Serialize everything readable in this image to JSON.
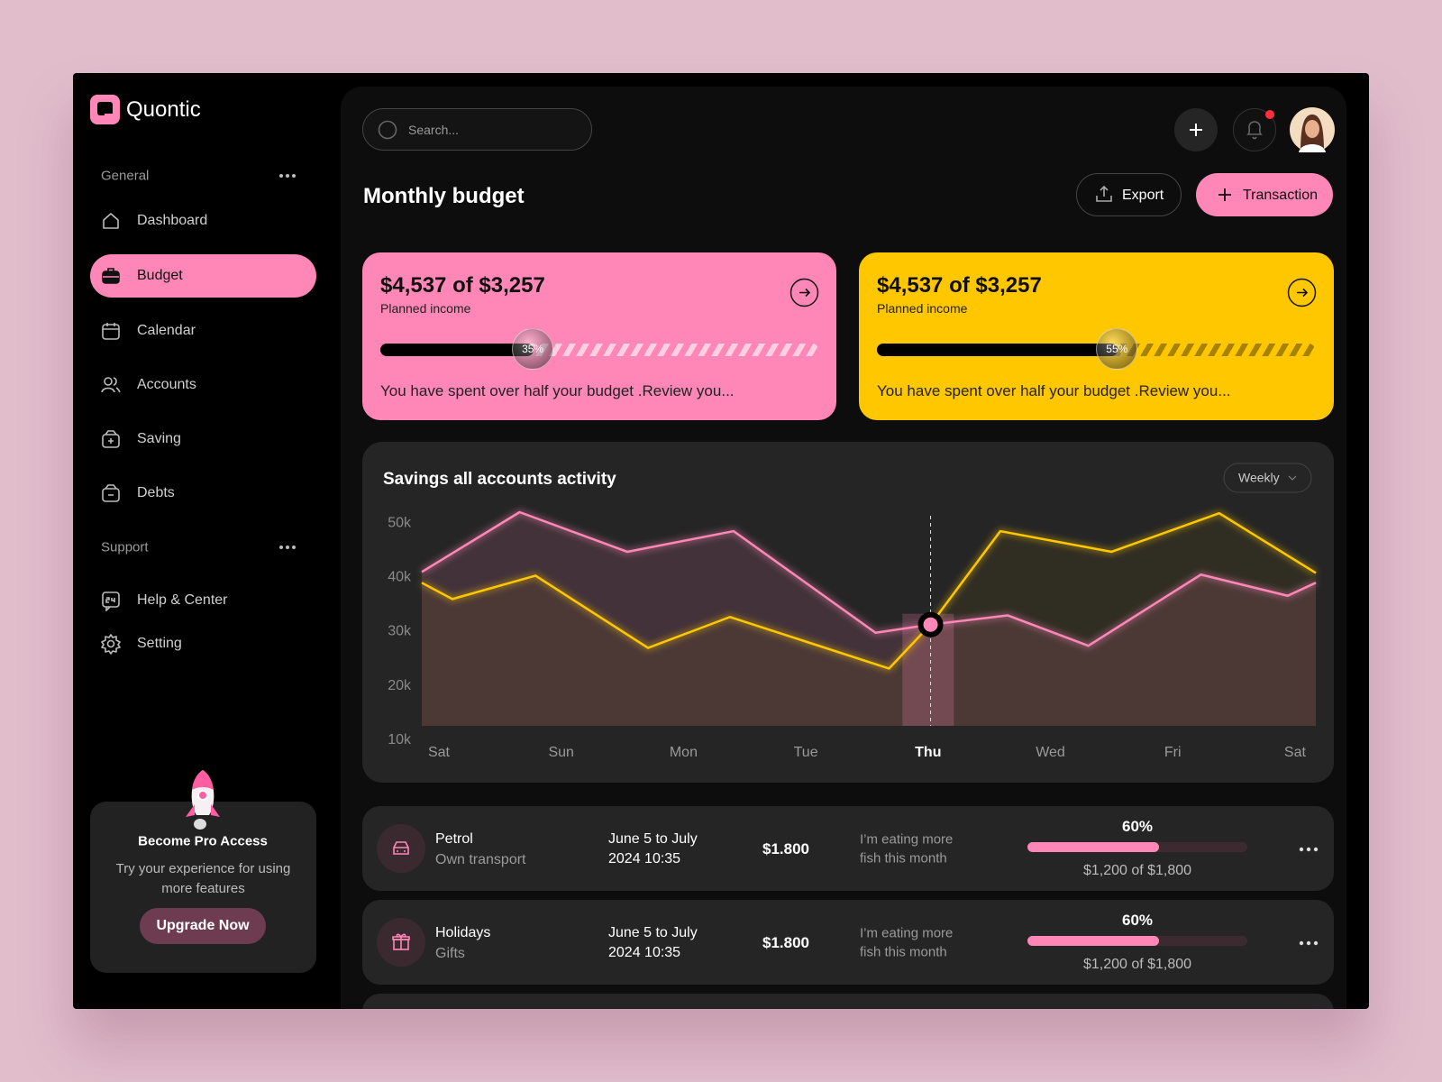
{
  "brand": "Quontic",
  "sidebar": {
    "sections": [
      {
        "title": "General",
        "items": [
          "Dashboard",
          "Budget",
          "Calendar",
          "Accounts",
          "Saving",
          "Debts"
        ]
      },
      {
        "title": "Support",
        "items": [
          "Help & Center",
          "Setting"
        ]
      }
    ]
  },
  "promo": {
    "title": "Become Pro Access",
    "text": "Try your experience for using more features",
    "button": "Upgrade Now"
  },
  "search_placeholder": "Search...",
  "page_title": "Monthly budget",
  "actions": [
    "Export",
    "Transaction"
  ],
  "budget_cards": [
    {
      "amount": "$4,537 of $3,257",
      "subtitle": "Planned income",
      "progress": 35,
      "progress_label": "35%",
      "message": "You have spent over half your budget .Review you...",
      "color": "#ff87b7"
    },
    {
      "amount": "$4,537 of $3,257",
      "subtitle": "Planned income",
      "progress": 55,
      "progress_label": "55%",
      "message": "You have spent over half your budget .Review you...",
      "color": "#ffc700"
    }
  ],
  "chart_data": {
    "type": "line",
    "title": "Savings all accounts activity",
    "period": "Weekly",
    "xlim": [
      -0.14,
      7.17
    ],
    "xticks": [
      {
        "value": 0,
        "label": "Sat"
      },
      {
        "value": 1,
        "label": "Sun"
      },
      {
        "value": 2,
        "label": "Mon"
      },
      {
        "value": 3,
        "label": "Tue"
      },
      {
        "value": 4,
        "label": "Thu"
      },
      {
        "value": 5,
        "label": "Wed"
      },
      {
        "value": 6,
        "label": "Fri"
      },
      {
        "value": 7,
        "label": "Sat"
      }
    ],
    "ylim": [
      10000,
      52000
    ],
    "yticks": [
      {
        "value": 10000,
        "label": "10k"
      },
      {
        "value": 20000,
        "label": "20k"
      },
      {
        "value": 30000,
        "label": "30k"
      },
      {
        "value": 40000,
        "label": "40k"
      },
      {
        "value": 50000,
        "label": "50k"
      }
    ],
    "series": [
      {
        "color": "#ff87b7",
        "x": [
          -0.14,
          0.66,
          1.54,
          2.41,
          3.57,
          4.02,
          4.65,
          5.31,
          6.23,
          6.94,
          7.17
        ],
        "values": [
          41000,
          52000,
          44700,
          48500,
          29800,
          31300,
          33000,
          27400,
          40500,
          36600,
          39000
        ]
      },
      {
        "color": "#ffc700",
        "x": [
          -0.14,
          0.11,
          0.79,
          1.71,
          2.38,
          3.68,
          4.02,
          4.59,
          5.5,
          6.38,
          7.17
        ],
        "values": [
          39000,
          36000,
          40300,
          27000,
          32700,
          23200,
          31300,
          48500,
          44700,
          51800,
          40800
        ]
      }
    ]
  },
  "transactions": [
    {
      "name": "Petrol",
      "category": "Own transport",
      "date": [
        "June 5 to July",
        "2024 10:35"
      ],
      "amount": "$1.800",
      "note": [
        "I’m eating more",
        "fish this month"
      ],
      "percent": 60,
      "percent_label": "60%",
      "progress_text": "$1,200 of $1,800"
    },
    {
      "name": "Holidays",
      "category": "Gifts",
      "date": [
        "June 5 to July",
        "2024 10:35"
      ],
      "amount": "$1.800",
      "note": [
        "I’m eating more",
        "fish this month"
      ],
      "percent": 60,
      "percent_label": "60%",
      "progress_text": "$1,200 of $1,800"
    }
  ]
}
